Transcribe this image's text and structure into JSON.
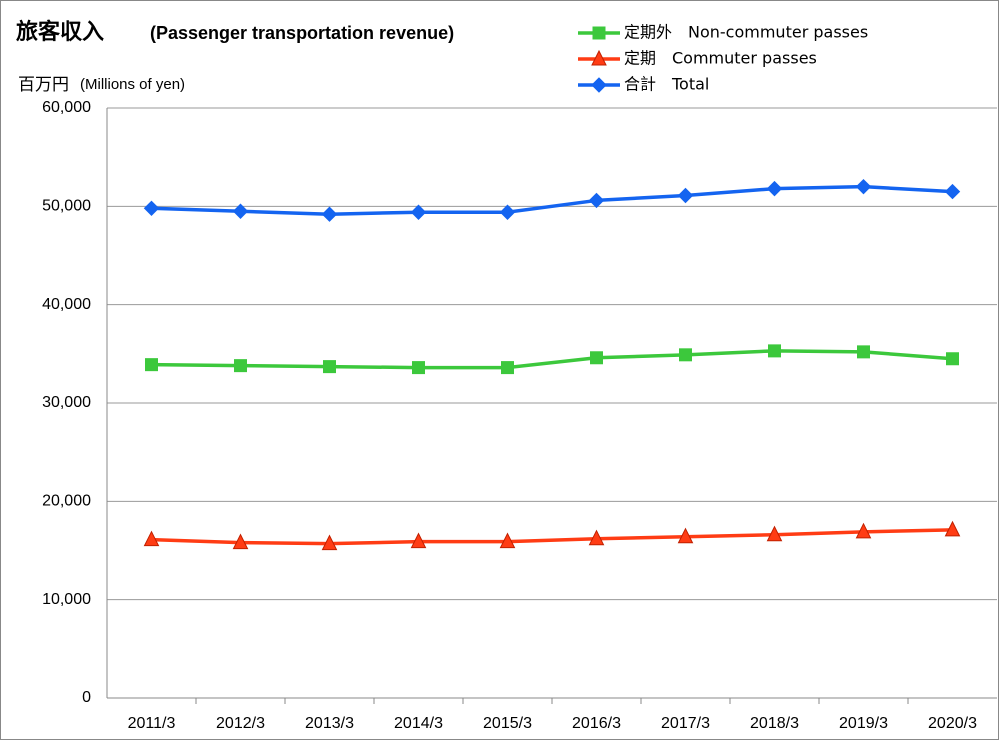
{
  "chart_data": {
    "type": "line",
    "title": "旅客収入",
    "subtitle": "(Passenger transportation revenue)",
    "y_label": "百万円",
    "y_label_en": "(Millions of yen)",
    "categories": [
      "2011/3",
      "2012/3",
      "2013/3",
      "2014/3",
      "2015/3",
      "2016/3",
      "2017/3",
      "2018/3",
      "2019/3",
      "2020/3"
    ],
    "series": [
      {
        "name": "定期外　Non-commuter passes",
        "color": "#3cc83c",
        "marker": "square",
        "values": [
          33900,
          33800,
          33700,
          33600,
          33600,
          34600,
          34900,
          35300,
          35200,
          34500
        ]
      },
      {
        "name": "定期　Commuter passes",
        "color": "#ff3c14",
        "marker": "triangle",
        "values": [
          16100,
          15800,
          15700,
          15900,
          15900,
          16200,
          16400,
          16600,
          16900,
          17100
        ]
      },
      {
        "name": "合計　Total",
        "color": "#1464f0",
        "marker": "diamond",
        "values": [
          49800,
          49500,
          49200,
          49400,
          49400,
          50600,
          51100,
          51800,
          52000,
          51500
        ]
      }
    ],
    "ylim": [
      0,
      60000
    ],
    "yticks": [
      0,
      {
        "value": 10000,
        "label": "10,000"
      },
      {
        "value": 20000,
        "label": "20,000"
      },
      {
        "value": 30000,
        "label": "30,000"
      },
      {
        "value": 40000,
        "label": "40,000"
      },
      {
        "value": 50000,
        "label": "50,000"
      },
      {
        "value": 60000,
        "label": "60,000"
      }
    ],
    "grid": true,
    "legend": "top-right"
  }
}
